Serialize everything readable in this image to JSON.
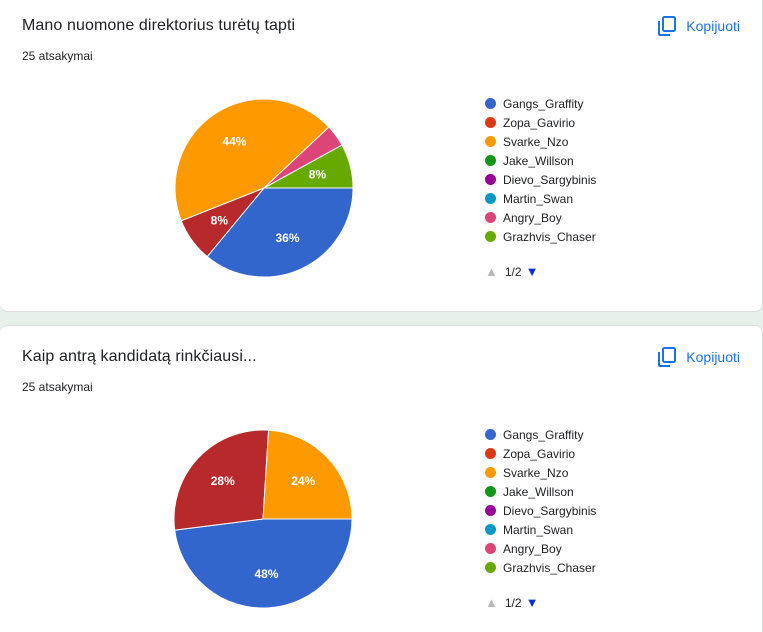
{
  "copy_label": "Kopijuoti",
  "legend_labels": [
    "Gangs_Graffity",
    "Zopa_Gavirio",
    "Svarke_Nzo",
    "Jake_Willson",
    "Dievo_Sargybinis",
    "Martin_Swan",
    "Angry_Boy",
    "Grazhvis_Chaser"
  ],
  "legend_colors": [
    "#3366cc",
    "#dc3912",
    "#ff9900",
    "#109618",
    "#990099",
    "#0099c6",
    "#dd4477",
    "#66aa00"
  ],
  "pager": {
    "text": "1/2",
    "prev_icon": "triangle-up-icon",
    "next_icon": "triangle-down-icon"
  },
  "questions": [
    {
      "title": "Mano nuomone direktorius turėtų tapti",
      "responses": "25 atsakymai"
    },
    {
      "title": "Kaip antrą kandidatą rinkčiausi...",
      "responses": "25 atsakymai"
    }
  ],
  "chart_data": [
    {
      "type": "pie",
      "labels": [
        "Gangs_Graffity",
        "Zopa_Gavirio",
        "Svarke_Nzo",
        "Jake_Willson",
        "Dievo_Sargybinis",
        "Martin_Swan",
        "Angry_Boy",
        "Grazhvis_Chaser"
      ],
      "values": [
        36,
        8,
        44,
        0,
        0,
        0,
        4,
        8
      ],
      "slice_colors": [
        "#3366cc",
        "#b7292a",
        "#ff9900",
        "#109618",
        "#990099",
        "#0099c6",
        "#dd4477",
        "#66aa00"
      ],
      "data_labels": [
        "36%",
        "8%",
        "44%",
        "",
        "",
        "",
        "",
        "8%"
      ],
      "legend_position": "right"
    },
    {
      "type": "pie",
      "labels": [
        "Gangs_Graffity",
        "Zopa_Gavirio",
        "Svarke_Nzo",
        "Jake_Willson",
        "Dievo_Sargybinis",
        "Martin_Swan",
        "Angry_Boy",
        "Grazhvis_Chaser"
      ],
      "values": [
        48,
        28,
        24,
        0,
        0,
        0,
        0,
        0
      ],
      "slice_colors": [
        "#3366cc",
        "#b7292a",
        "#ff9900",
        "#109618",
        "#990099",
        "#0099c6",
        "#dd4477",
        "#66aa00"
      ],
      "data_labels": [
        "48%",
        "28%",
        "24%",
        "",
        "",
        "",
        "",
        ""
      ],
      "legend_position": "right"
    }
  ]
}
